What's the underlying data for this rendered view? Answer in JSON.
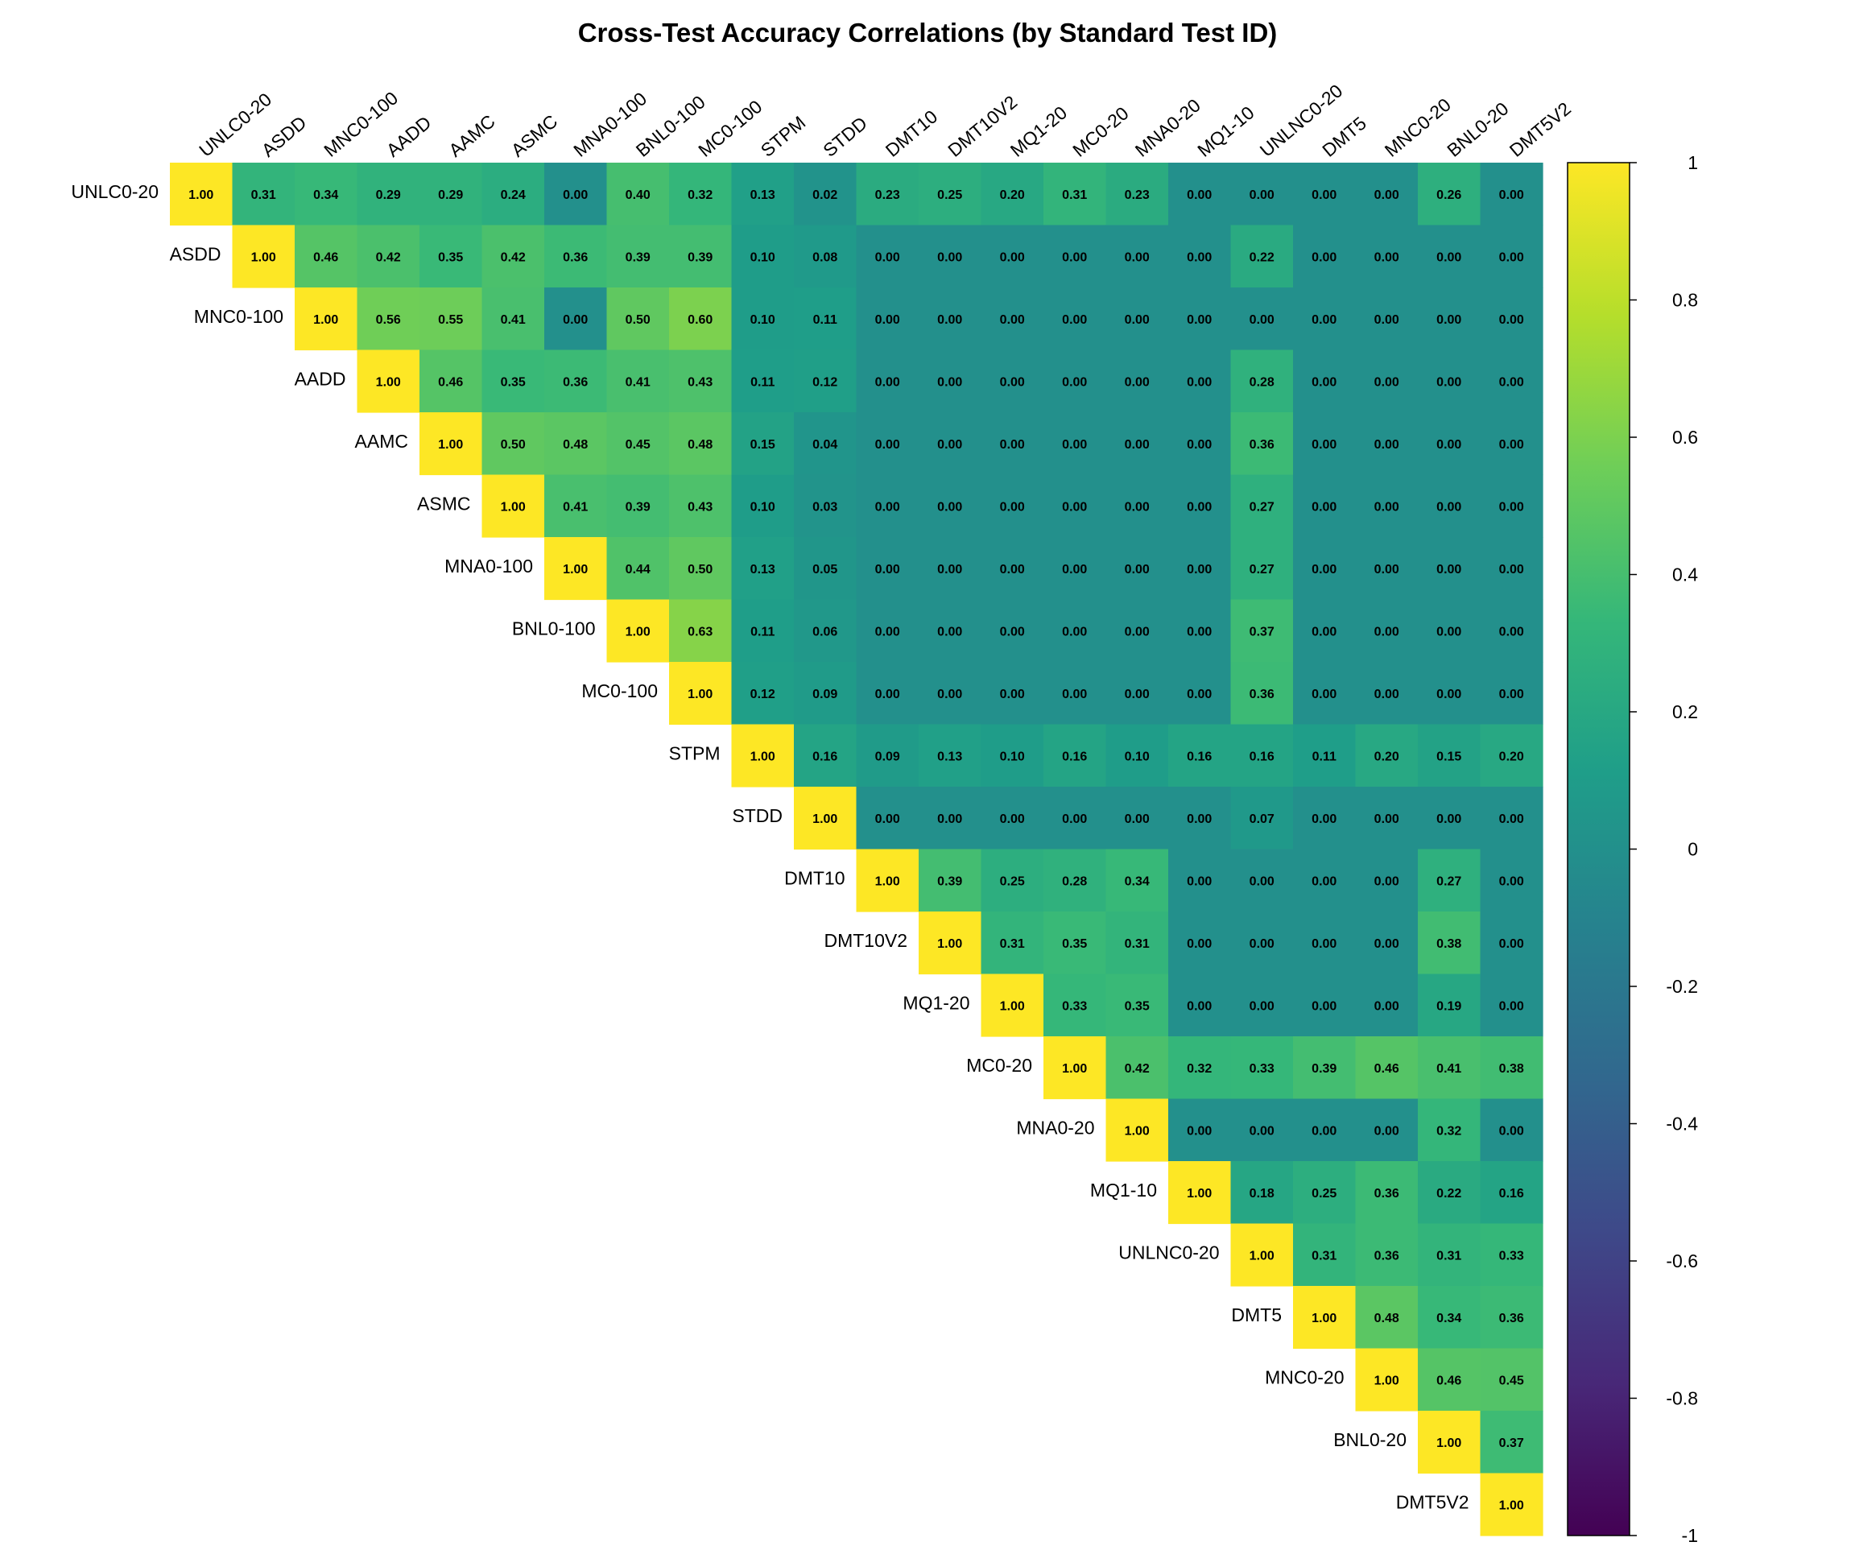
{
  "chart_data": {
    "type": "heatmap",
    "title": "Cross-Test Accuracy Correlations (by Standard Test ID)",
    "xlabel": "",
    "ylabel": "",
    "labels": [
      "UNLC0-20",
      "ASDD",
      "MNC0-100",
      "AADD",
      "AAMC",
      "ASMC",
      "MNA0-100",
      "BNL0-100",
      "MC0-100",
      "STPM",
      "STDD",
      "DMT10",
      "DMT10V2",
      "MQ1-20",
      "MC0-20",
      "MNA0-20",
      "MQ1-10",
      "UNLNC0-20",
      "DMT5",
      "MNC0-20",
      "BNL0-20",
      "DMT5V2"
    ],
    "matrix_upper": [
      [
        1.0,
        0.31,
        0.34,
        0.29,
        0.29,
        0.24,
        0.0,
        0.4,
        0.32,
        0.13,
        0.02,
        0.23,
        0.25,
        0.2,
        0.31,
        0.23,
        0.0,
        0.0,
        0.0,
        0.0,
        0.26,
        0.0
      ],
      [
        1.0,
        0.46,
        0.42,
        0.35,
        0.42,
        0.36,
        0.39,
        0.39,
        0.1,
        0.08,
        0.0,
        0.0,
        0.0,
        0.0,
        0.0,
        0.0,
        0.22,
        0.0,
        0.0,
        0.0,
        0.0
      ],
      [
        1.0,
        0.56,
        0.55,
        0.41,
        0.0,
        0.5,
        0.6,
        0.1,
        0.11,
        0.0,
        0.0,
        0.0,
        0.0,
        0.0,
        0.0,
        0.0,
        0.0,
        0.0,
        0.0,
        0.0
      ],
      [
        1.0,
        0.46,
        0.35,
        0.36,
        0.41,
        0.43,
        0.11,
        0.12,
        0.0,
        0.0,
        0.0,
        0.0,
        0.0,
        0.0,
        0.28,
        0.0,
        0.0,
        0.0,
        0.0
      ],
      [
        1.0,
        0.5,
        0.48,
        0.45,
        0.48,
        0.15,
        0.04,
        0.0,
        0.0,
        0.0,
        0.0,
        0.0,
        0.0,
        0.36,
        0.0,
        0.0,
        0.0,
        0.0
      ],
      [
        1.0,
        0.41,
        0.39,
        0.43,
        0.1,
        0.03,
        0.0,
        0.0,
        0.0,
        0.0,
        0.0,
        0.0,
        0.27,
        0.0,
        0.0,
        0.0,
        0.0
      ],
      [
        1.0,
        0.44,
        0.5,
        0.13,
        0.05,
        0.0,
        0.0,
        0.0,
        0.0,
        0.0,
        0.0,
        0.27,
        0.0,
        0.0,
        0.0,
        0.0
      ],
      [
        1.0,
        0.63,
        0.11,
        0.06,
        0.0,
        0.0,
        0.0,
        0.0,
        0.0,
        0.0,
        0.37,
        0.0,
        0.0,
        0.0,
        0.0
      ],
      [
        1.0,
        0.12,
        0.09,
        0.0,
        0.0,
        0.0,
        0.0,
        0.0,
        0.0,
        0.36,
        0.0,
        0.0,
        0.0,
        0.0
      ],
      [
        1.0,
        0.16,
        0.09,
        0.13,
        0.1,
        0.16,
        0.1,
        0.16,
        0.16,
        0.11,
        0.2,
        0.15,
        0.2
      ],
      [
        1.0,
        0.0,
        0.0,
        0.0,
        0.0,
        0.0,
        0.0,
        0.07,
        0.0,
        0.0,
        0.0,
        0.0
      ],
      [
        1.0,
        0.39,
        0.25,
        0.28,
        0.34,
        0.0,
        0.0,
        0.0,
        0.0,
        0.27,
        0.0
      ],
      [
        1.0,
        0.31,
        0.35,
        0.31,
        0.0,
        0.0,
        0.0,
        0.0,
        0.38,
        0.0
      ],
      [
        1.0,
        0.33,
        0.35,
        0.0,
        0.0,
        0.0,
        0.0,
        0.19,
        0.0
      ],
      [
        1.0,
        0.42,
        0.32,
        0.33,
        0.39,
        0.46,
        0.41,
        0.38
      ],
      [
        1.0,
        0.0,
        0.0,
        0.0,
        0.0,
        0.32,
        0.0
      ],
      [
        1.0,
        0.18,
        0.25,
        0.36,
        0.22,
        0.16
      ],
      [
        1.0,
        0.31,
        0.36,
        0.31,
        0.33
      ],
      [
        1.0,
        0.48,
        0.34,
        0.36
      ],
      [
        1.0,
        0.46,
        0.45
      ],
      [
        1.0,
        0.37
      ],
      [
        1.0
      ]
    ],
    "value_format": "2 decimals",
    "colorbar": {
      "colormap": "viridis",
      "range": [
        -1,
        1
      ],
      "ticks": [
        1,
        0.8,
        0.6,
        0.4,
        0.2,
        0,
        -0.2,
        -0.4,
        -0.6,
        -0.8,
        -1
      ],
      "tick_labels": [
        "1",
        "0.8",
        "0.6",
        "0.4",
        "0.2",
        "0",
        "-0.2",
        "-0.4",
        "-0.6",
        "-0.8",
        "-1"
      ],
      "placement": "right"
    },
    "stops": [
      "#440154",
      "#482878",
      "#3e4989",
      "#31688e",
      "#26828e",
      "#1f9e89",
      "#35b779",
      "#6ece58",
      "#b5de2b",
      "#fde725"
    ]
  }
}
